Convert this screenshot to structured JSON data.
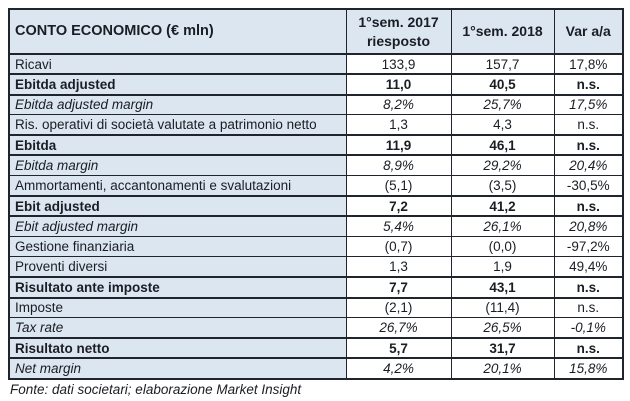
{
  "colors": {
    "header_fill": "#dce6f1",
    "label_fill": "#dce6f1",
    "border": "#20242c",
    "text": "#1a1d23",
    "background": "#ffffff"
  },
  "table": {
    "header": {
      "col_label": "CONTO ECONOMICO (€ mln)",
      "col_2017_line1": "1°sem. 2017",
      "col_2017_line2": "riesposto",
      "col_2018": "1°sem. 2018",
      "col_var": "Var a/a"
    },
    "rows": [
      {
        "label": "Ricavi",
        "v2017": "133,9",
        "v2018": "157,7",
        "var_aa": "17,8%",
        "style": "normal"
      },
      {
        "label": "Ebitda adjusted",
        "v2017": "11,0",
        "v2018": "40,5",
        "var_aa": "n.s.",
        "style": "bold"
      },
      {
        "label": "Ebitda adjusted margin",
        "v2017": "8,2%",
        "v2018": "25,7%",
        "var_aa": "17,5%",
        "style": "italic"
      },
      {
        "label": "Ris. operativi di società valutate a patrimonio netto",
        "v2017": "1,3",
        "v2018": "4,3",
        "var_aa": "n.s.",
        "style": "normal"
      },
      {
        "label": "Ebitda",
        "v2017": "11,9",
        "v2018": "46,1",
        "var_aa": "n.s.",
        "style": "bold"
      },
      {
        "label": "Ebitda margin",
        "v2017": "8,9%",
        "v2018": "29,2%",
        "var_aa": "20,4%",
        "style": "italic"
      },
      {
        "label": "Ammortamenti, accantonamenti e svalutazioni",
        "v2017": "(5,1)",
        "v2018": "(3,5)",
        "var_aa": "-30,5%",
        "style": "normal"
      },
      {
        "label": "Ebit adjusted",
        "v2017": "7,2",
        "v2018": "41,2",
        "var_aa": "n.s.",
        "style": "bold"
      },
      {
        "label": "Ebit adjusted margin",
        "v2017": "5,4%",
        "v2018": "26,1%",
        "var_aa": "20,8%",
        "style": "italic"
      },
      {
        "label": "Gestione finanziaria",
        "v2017": "(0,7)",
        "v2018": "(0,0)",
        "var_aa": "-97,2%",
        "style": "normal"
      },
      {
        "label": "Proventi diversi",
        "v2017": "1,3",
        "v2018": "1,9",
        "var_aa": "49,4%",
        "style": "normal"
      },
      {
        "label": "Risultato ante imposte",
        "v2017": "7,7",
        "v2018": "43,1",
        "var_aa": "n.s.",
        "style": "bold"
      },
      {
        "label": "Imposte",
        "v2017": "(2,1)",
        "v2018": "(11,4)",
        "var_aa": "n.s.",
        "style": "normal"
      },
      {
        "label": "Tax rate",
        "v2017": "26,7%",
        "v2018": "26,5%",
        "var_aa": "-0,1%",
        "style": "italic"
      },
      {
        "label": "Risultato netto",
        "v2017": "5,7",
        "v2018": "31,7",
        "var_aa": "n.s.",
        "style": "bold"
      },
      {
        "label": "Net margin",
        "v2017": "4,2%",
        "v2018": "20,1%",
        "var_aa": "15,8%",
        "style": "italic"
      }
    ]
  },
  "footer": {
    "source_note": "Fonte: dati societari; elaborazione Market Insight"
  }
}
